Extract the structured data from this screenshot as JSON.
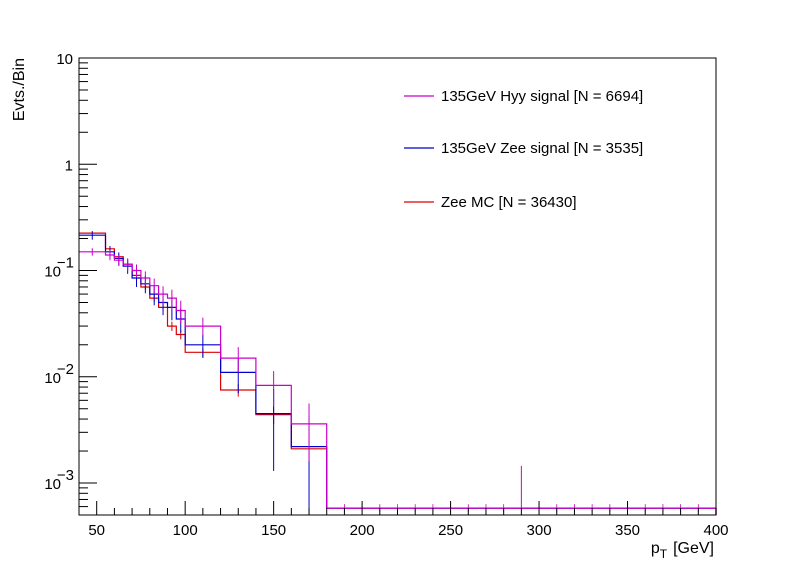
{
  "chart_data": {
    "type": "line",
    "style": "step-histogram-with-error-bars",
    "xlabel": "p",
    "xlabel_subscript": "T",
    "xlabel_unit": "[GeV]",
    "ylabel": "Evts./Bin",
    "xlim": [
      40,
      400
    ],
    "ylim": [
      0.0005,
      10
    ],
    "yscale": "log",
    "x_ticks": [
      50,
      100,
      150,
      200,
      250,
      300,
      350,
      400
    ],
    "x_tick_labels": [
      "50",
      "100",
      "150",
      "200",
      "250",
      "300",
      "350",
      "400"
    ],
    "y_ticks": [
      {
        "value": 10,
        "base": "10",
        "exp": ""
      },
      {
        "value": 1,
        "base": "1",
        "exp": ""
      },
      {
        "value": 0.1,
        "base": "10",
        "exp": "−1"
      },
      {
        "value": 0.01,
        "base": "10",
        "exp": "−2"
      },
      {
        "value": 0.001,
        "base": "10",
        "exp": "−3"
      }
    ],
    "legend_position": "top-right",
    "series": [
      {
        "name": "135GeV Hyy signal [N = 6694]",
        "color": "#cc00cc",
        "bins": [
          {
            "lo": 40,
            "hi": 55,
            "y": 0.15,
            "err": 0.012
          },
          {
            "lo": 55,
            "hi": 60,
            "y": 0.14,
            "err": 0.015
          },
          {
            "lo": 60,
            "hi": 65,
            "y": 0.125,
            "err": 0.015
          },
          {
            "lo": 65,
            "hi": 70,
            "y": 0.115,
            "err": 0.015
          },
          {
            "lo": 70,
            "hi": 75,
            "y": 0.1,
            "err": 0.014
          },
          {
            "lo": 75,
            "hi": 80,
            "y": 0.085,
            "err": 0.013
          },
          {
            "lo": 80,
            "hi": 85,
            "y": 0.072,
            "err": 0.012
          },
          {
            "lo": 85,
            "hi": 90,
            "y": 0.06,
            "err": 0.011
          },
          {
            "lo": 90,
            "hi": 95,
            "y": 0.055,
            "err": 0.011
          },
          {
            "lo": 95,
            "hi": 100,
            "y": 0.042,
            "err": 0.01
          },
          {
            "lo": 100,
            "hi": 120,
            "y": 0.03,
            "err": 0.006
          },
          {
            "lo": 120,
            "hi": 140,
            "y": 0.015,
            "err": 0.004
          },
          {
            "lo": 140,
            "hi": 160,
            "y": 0.0083,
            "err": 0.003
          },
          {
            "lo": 160,
            "hi": 180,
            "y": 0.0036,
            "err": 0.002
          },
          {
            "lo": 180,
            "hi": 400,
            "y": 0.00058,
            "err": 0
          }
        ],
        "extra_markers": [
          {
            "x": 290,
            "ylo": 0.00058,
            "yhi": 0.00145
          }
        ]
      },
      {
        "name": "135GeV Zee signal [N = 3535]",
        "color": "#0000cc",
        "bins": [
          {
            "lo": 40,
            "hi": 55,
            "y": 0.215,
            "err": 0.02
          },
          {
            "lo": 55,
            "hi": 60,
            "y": 0.15,
            "err": 0.02
          },
          {
            "lo": 60,
            "hi": 65,
            "y": 0.13,
            "err": 0.018
          },
          {
            "lo": 65,
            "hi": 70,
            "y": 0.11,
            "err": 0.017
          },
          {
            "lo": 70,
            "hi": 75,
            "y": 0.085,
            "err": 0.015
          },
          {
            "lo": 75,
            "hi": 80,
            "y": 0.075,
            "err": 0.014
          },
          {
            "lo": 80,
            "hi": 85,
            "y": 0.06,
            "err": 0.013
          },
          {
            "lo": 85,
            "hi": 90,
            "y": 0.05,
            "err": 0.012
          },
          {
            "lo": 90,
            "hi": 95,
            "y": 0.045,
            "err": 0.011
          },
          {
            "lo": 95,
            "hi": 100,
            "y": 0.035,
            "err": 0.009
          },
          {
            "lo": 100,
            "hi": 120,
            "y": 0.02,
            "err": 0.005
          },
          {
            "lo": 120,
            "hi": 140,
            "y": 0.011,
            "err": 0.004
          },
          {
            "lo": 140,
            "hi": 160,
            "y": 0.0045,
            "err": 0.0032
          },
          {
            "lo": 160,
            "hi": 180,
            "y": 0.0022,
            "err": 0.0021
          },
          {
            "lo": 180,
            "hi": 400,
            "y": 0.00058,
            "err": 0
          }
        ]
      },
      {
        "name": "Zee MC [N = 36430]",
        "color": "#dd0000",
        "bins": [
          {
            "lo": 40,
            "hi": 55,
            "y": 0.225,
            "err": 0.003
          },
          {
            "lo": 55,
            "hi": 60,
            "y": 0.16,
            "err": 0.006
          },
          {
            "lo": 60,
            "hi": 65,
            "y": 0.135,
            "err": 0.006
          },
          {
            "lo": 65,
            "hi": 70,
            "y": 0.115,
            "err": 0.005
          },
          {
            "lo": 70,
            "hi": 75,
            "y": 0.09,
            "err": 0.005
          },
          {
            "lo": 75,
            "hi": 80,
            "y": 0.07,
            "err": 0.004
          },
          {
            "lo": 80,
            "hi": 85,
            "y": 0.055,
            "err": 0.004
          },
          {
            "lo": 85,
            "hi": 90,
            "y": 0.045,
            "err": 0.0035
          },
          {
            "lo": 90,
            "hi": 95,
            "y": 0.03,
            "err": 0.003
          },
          {
            "lo": 95,
            "hi": 100,
            "y": 0.025,
            "err": 0.0025
          },
          {
            "lo": 100,
            "hi": 120,
            "y": 0.017,
            "err": 0.0015
          },
          {
            "lo": 120,
            "hi": 140,
            "y": 0.0075,
            "err": 0.001
          },
          {
            "lo": 140,
            "hi": 160,
            "y": 0.0044,
            "err": 0.0008
          },
          {
            "lo": 160,
            "hi": 180,
            "y": 0.0021,
            "err": 0.0005
          },
          {
            "lo": 180,
            "hi": 400,
            "y": 0.00058,
            "err": 0
          }
        ]
      }
    ]
  }
}
